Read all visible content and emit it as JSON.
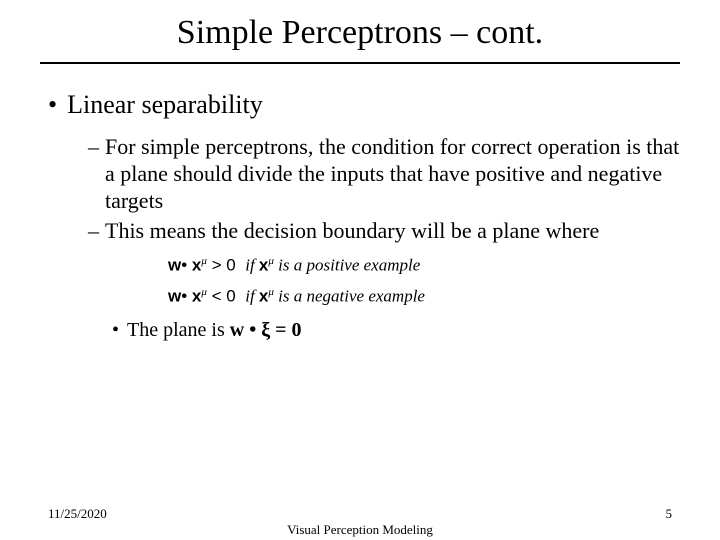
{
  "title": "Simple Perceptrons – cont.",
  "bullet1": {
    "marker": "•",
    "text": "Linear separability"
  },
  "sub1": {
    "dash": "–",
    "text": "For simple perceptrons, the condition for correct operation is that a plane should divide the inputs that have positive and negative targets"
  },
  "sub2": {
    "dash": "–",
    "text": "This means the decision boundary will be a plane where"
  },
  "math1": {
    "lhs_w": "w",
    "dot": "•",
    "lhs_x": "x",
    "sup": "μ",
    "rel": " > 0 ",
    "if": "if ",
    "x2": "x",
    "tail": " is a positive example"
  },
  "math2": {
    "lhs_w": "w",
    "dot": "•",
    "lhs_x": "x",
    "sup": "μ",
    "rel": " < 0 ",
    "if": "if ",
    "x2": "x",
    "tail": " is a negative example"
  },
  "sub3": {
    "marker": "•",
    "pre": "The plane is ",
    "w": "w",
    "dot": " • ",
    "xi": "ξ",
    "eq": " = 0"
  },
  "footer": {
    "date": "11/25/2020",
    "title": "Visual Perception Modeling",
    "page": "5"
  }
}
